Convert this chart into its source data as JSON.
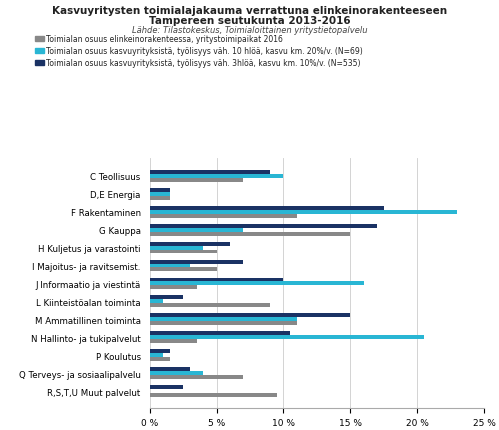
{
  "title1": "Kasvuyritysten toimialajakauma verrattuna elinkeinorakenteeseen",
  "title2": "Tampereen seutukunta 2013-2016",
  "subtitle": "Lähde: Tilastokeskus, Toimialoittainen yritystietopalvelu",
  "legend": [
    "Toimialan osuus elinkeinorakenteessa, yritystoimipaikat 2016",
    "Toimialan osuus kasvuyrityksistä, työlisyys väh. 10 hlöä, kasvu km. 20%/v. (N=69)",
    "Toimialan osuus kasvuyrityksistä, työlisyys väh. 3hlöä, kasvu km. 10%/v. (N=535)"
  ],
  "categories": [
    "C Teollisuus",
    "D,E Energia",
    "F Rakentaminen",
    "G Kauppa",
    "H Kuljetus ja varastointi",
    "I Majoitus- ja ravitsemist.",
    "J Informaatio ja viestintä",
    "L Kiinteistöalan toiminta",
    "M Ammatillinen toiminta",
    "N Hallinto- ja tukipalvelut",
    "P Koulutus",
    "Q Terveys- ja sosiaalipalvelu",
    "R,S,T,U Muut palvelut"
  ],
  "gray_values": [
    7.0,
    1.5,
    11.0,
    15.0,
    5.0,
    5.0,
    3.5,
    9.0,
    11.0,
    3.5,
    1.5,
    7.0,
    9.5
  ],
  "cyan_values": [
    10.0,
    1.5,
    23.0,
    7.0,
    4.0,
    3.0,
    16.0,
    1.0,
    11.0,
    20.5,
    1.0,
    4.0,
    0.0
  ],
  "blue_values": [
    9.0,
    1.5,
    17.5,
    17.0,
    6.0,
    7.0,
    10.0,
    2.5,
    15.0,
    10.5,
    1.5,
    3.0,
    2.5
  ],
  "gray_color": "#888888",
  "cyan_color": "#29b6d4",
  "blue_color": "#1a3264",
  "xlim": [
    0,
    25
  ],
  "xticks": [
    0,
    5,
    10,
    15,
    20,
    25
  ],
  "xticklabels": [
    "0 %",
    "5 %",
    "10 %",
    "15 %",
    "20 %",
    "25 %"
  ],
  "background_color": "#ffffff",
  "bar_height": 0.22
}
